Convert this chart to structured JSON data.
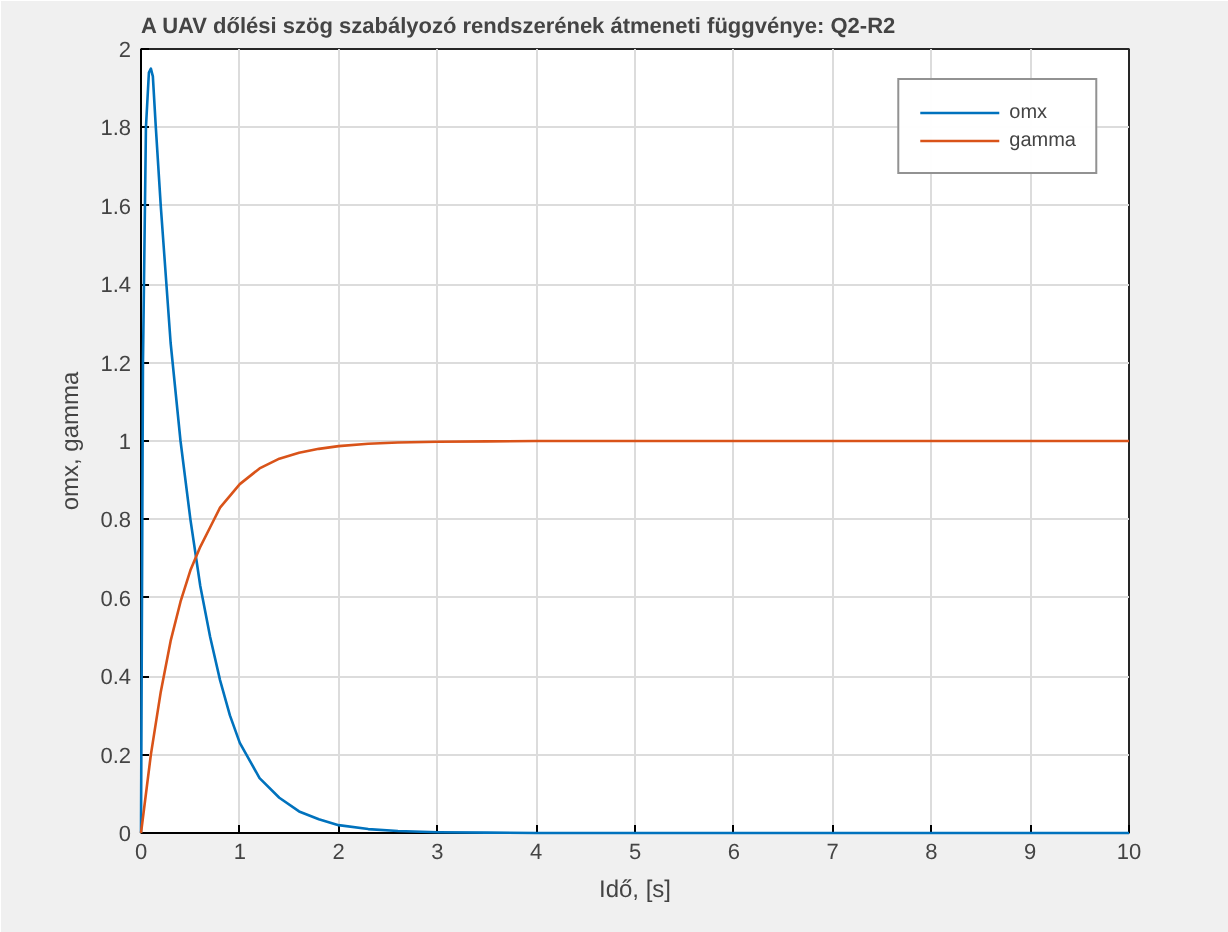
{
  "chart_data": {
    "type": "line",
    "title": "A UAV dőlési szög szabályozó rendszerének átmeneti függvénye: Q2-R2",
    "xlabel": "Idő, [s]",
    "ylabel": "omx, gamma",
    "series": [
      {
        "name": "omx",
        "color": "#0072bd",
        "x": [
          0,
          0.02,
          0.05,
          0.08,
          0.1,
          0.12,
          0.15,
          0.2,
          0.3,
          0.4,
          0.5,
          0.6,
          0.7,
          0.8,
          0.9,
          1.0,
          1.2,
          1.4,
          1.6,
          1.8,
          2.0,
          2.3,
          2.6,
          3.0,
          3.5,
          4,
          5,
          6,
          7,
          8,
          9,
          10
        ],
        "values": [
          0,
          1.2,
          1.8,
          1.94,
          1.95,
          1.93,
          1.8,
          1.6,
          1.25,
          1.0,
          0.8,
          0.63,
          0.5,
          0.39,
          0.3,
          0.23,
          0.14,
          0.09,
          0.055,
          0.035,
          0.02,
          0.01,
          0.005,
          0.002,
          0.001,
          0,
          0,
          0,
          0,
          0,
          0,
          0
        ]
      },
      {
        "name": "gamma",
        "color": "#d95319",
        "x": [
          0,
          0.1,
          0.2,
          0.3,
          0.4,
          0.5,
          0.6,
          0.7,
          0.8,
          0.9,
          1.0,
          1.2,
          1.4,
          1.6,
          1.8,
          2.0,
          2.3,
          2.6,
          3.0,
          3.5,
          4,
          5,
          6,
          7,
          8,
          9,
          10
        ],
        "values": [
          0,
          0.2,
          0.36,
          0.49,
          0.59,
          0.67,
          0.73,
          0.78,
          0.83,
          0.86,
          0.89,
          0.93,
          0.955,
          0.97,
          0.98,
          0.987,
          0.993,
          0.996,
          0.998,
          0.999,
          1,
          1,
          1,
          1,
          1,
          1,
          1
        ]
      }
    ],
    "xlim": [
      0,
      10
    ],
    "ylim": [
      0,
      2
    ],
    "xticks": [
      0,
      1,
      2,
      3,
      4,
      5,
      6,
      7,
      8,
      9,
      10
    ],
    "yticks": [
      0,
      0.2,
      0.4,
      0.6,
      0.8,
      1,
      1.2,
      1.4,
      1.6,
      1.8,
      2
    ],
    "grid": true,
    "legend": "top right",
    "line_style": "solid"
  }
}
